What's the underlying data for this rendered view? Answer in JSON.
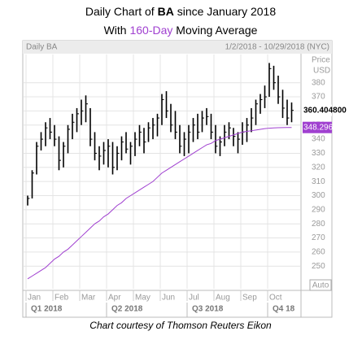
{
  "chart_data": {
    "type": "ohlc",
    "title": [
      "Daily Chart of ",
      "BA",
      " since January 2018"
    ],
    "subtitle": [
      "With ",
      "160-Day",
      " Moving Average"
    ],
    "subtitle_highlight_color": "#a040d0",
    "panel_title": "Daily BA",
    "date_range": "1/2/2018 - 10/29/2018 (NYC)",
    "axis_label": [
      "Price",
      "USD"
    ],
    "scale_mode": "Auto",
    "footer": "Chart courtesy of Thomson Reuters Eikon",
    "categories": [
      "Jan",
      null,
      null,
      null,
      null,
      null,
      "Feb",
      null,
      null,
      null,
      null,
      null,
      "Mar",
      null,
      null,
      null,
      null,
      null,
      "Apr",
      null,
      null,
      null,
      null,
      null,
      "May",
      null,
      null,
      null,
      null,
      null,
      "Jun",
      null,
      null,
      null,
      null,
      null,
      "Jul",
      null,
      null,
      null,
      null,
      null,
      "Aug",
      null,
      null,
      null,
      null,
      null,
      "Sep",
      null,
      null,
      null,
      null,
      null,
      "Oct",
      null,
      null,
      null,
      null,
      null
    ],
    "quarters": [
      {
        "label": "Q1 2018",
        "start": 0
      },
      {
        "label": "Q2 2018",
        "start": 18
      },
      {
        "label": "Q3 2018",
        "start": 36
      },
      {
        "label": "Q4 18",
        "start": 54
      }
    ],
    "series": [
      {
        "name": "BA",
        "color": "#000000",
        "low": [
          293,
          298,
          315,
          332,
          335,
          340,
          335,
          318,
          320,
          330,
          340,
          345,
          350,
          352,
          335,
          325,
          318,
          322,
          320,
          315,
          318,
          325,
          330,
          322,
          328,
          335,
          330,
          338,
          340,
          342,
          350,
          355,
          345,
          340,
          330,
          328,
          330,
          338,
          340,
          345,
          350,
          340,
          330,
          328,
          335,
          340,
          335,
          330,
          336,
          338,
          345,
          350,
          358,
          362,
          370,
          375,
          365,
          355,
          350,
          352
        ],
        "high": [
          300,
          318,
          338,
          345,
          352,
          355,
          350,
          342,
          338,
          350,
          358,
          362,
          368,
          371,
          362,
          345,
          335,
          338,
          340,
          338,
          335,
          342,
          345,
          338,
          345,
          350,
          348,
          352,
          355,
          358,
          372,
          374,
          365,
          360,
          350,
          345,
          350,
          355,
          358,
          360,
          362,
          358,
          350,
          342,
          350,
          352,
          348,
          345,
          352,
          355,
          362,
          368,
          372,
          378,
          394,
          392,
          385,
          375,
          368,
          366
        ],
        "close": [
          298,
          316,
          335,
          340,
          348,
          345,
          340,
          325,
          335,
          347,
          352,
          358,
          360,
          365,
          340,
          330,
          328,
          332,
          335,
          320,
          330,
          338,
          333,
          335,
          340,
          345,
          338,
          348,
          350,
          355,
          368,
          360,
          350,
          345,
          335,
          340,
          345,
          350,
          345,
          355,
          356,
          345,
          335,
          338,
          345,
          348,
          342,
          340,
          345,
          350,
          355,
          365,
          368,
          370,
          390,
          380,
          370,
          362,
          355,
          360.4048
        ],
        "last_label": "360.404800"
      },
      {
        "name": "160-Day MA",
        "color": "#a040d0",
        "values": [
          241,
          243,
          245,
          247,
          249,
          252,
          255,
          257,
          260,
          262,
          265,
          268,
          271,
          274,
          277,
          280,
          282,
          285,
          287,
          290,
          293,
          295,
          298,
          300,
          302,
          304,
          306,
          308,
          310,
          313,
          316,
          318,
          320,
          322,
          324,
          326,
          328,
          330,
          332,
          334,
          336,
          337,
          339,
          340,
          341,
          342,
          343,
          344,
          345,
          345.5,
          346,
          346.5,
          347,
          347.5,
          347.8,
          348,
          348.1,
          348.2,
          348.25,
          348.296593
        ]
      }
    ],
    "ylim": [
      234,
      400
    ],
    "yticks": [
      250,
      260,
      270,
      280,
      290,
      300,
      310,
      320,
      330,
      340,
      350,
      360,
      370,
      380
    ],
    "grid": true
  }
}
